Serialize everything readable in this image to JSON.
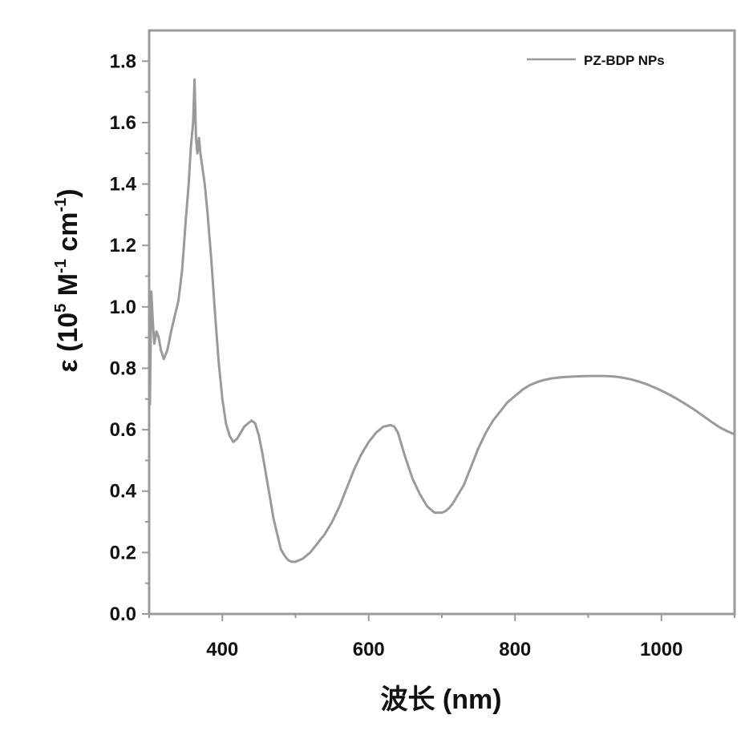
{
  "chart_data": {
    "type": "line",
    "title": "",
    "xlabel": "波长 (nm)",
    "ylabel_parts": {
      "symbol": "ε",
      "open": " (10",
      "exp1": "5",
      "mid": " M",
      "exp2": "-1",
      "unit": " cm",
      "exp3": "-1",
      "close": ")"
    },
    "xlim": [
      300,
      1100
    ],
    "ylim": [
      0.0,
      1.9
    ],
    "xticks": [
      400,
      600,
      800,
      1000
    ],
    "xtick_labels": [
      "400",
      "600",
      "800",
      "1000"
    ],
    "yticks": [
      0.0,
      0.2,
      0.4,
      0.6,
      0.8,
      1.0,
      1.2,
      1.4,
      1.6,
      1.8
    ],
    "ytick_labels": [
      "0.0",
      "0.2",
      "0.4",
      "0.6",
      "0.8",
      "1.0",
      "1.2",
      "1.4",
      "1.6",
      "1.8"
    ],
    "legend_position": "top-right",
    "series": [
      {
        "name": "PZ-BDP NPs",
        "color": "#9a9a9a",
        "x": [
          301,
          303,
          305,
          307,
          310,
          313,
          316,
          320,
          325,
          330,
          335,
          340,
          345,
          350,
          354,
          357,
          360,
          362,
          364,
          366,
          368,
          370,
          373,
          376,
          380,
          385,
          390,
          395,
          400,
          405,
          410,
          415,
          420,
          425,
          430,
          435,
          440,
          445,
          450,
          455,
          460,
          465,
          470,
          475,
          480,
          485,
          490,
          495,
          500,
          505,
          510,
          520,
          530,
          540,
          550,
          560,
          570,
          580,
          590,
          600,
          610,
          620,
          630,
          635,
          640,
          645,
          650,
          660,
          670,
          680,
          690,
          700,
          705,
          710,
          715,
          720,
          730,
          740,
          750,
          760,
          770,
          780,
          790,
          800,
          810,
          820,
          830,
          840,
          850,
          860,
          870,
          880,
          890,
          900,
          910,
          920,
          930,
          940,
          950,
          960,
          970,
          980,
          990,
          1000,
          1010,
          1020,
          1030,
          1040,
          1050,
          1060,
          1070,
          1080,
          1090,
          1100
        ],
        "y": [
          0.68,
          1.05,
          0.95,
          0.88,
          0.92,
          0.9,
          0.86,
          0.83,
          0.86,
          0.92,
          0.97,
          1.02,
          1.12,
          1.28,
          1.4,
          1.52,
          1.6,
          1.74,
          1.55,
          1.5,
          1.55,
          1.5,
          1.45,
          1.4,
          1.3,
          1.15,
          0.98,
          0.82,
          0.7,
          0.62,
          0.58,
          0.56,
          0.57,
          0.59,
          0.61,
          0.62,
          0.63,
          0.62,
          0.58,
          0.52,
          0.45,
          0.38,
          0.31,
          0.26,
          0.21,
          0.19,
          0.175,
          0.17,
          0.17,
          0.175,
          0.18,
          0.2,
          0.23,
          0.26,
          0.3,
          0.35,
          0.41,
          0.47,
          0.52,
          0.56,
          0.59,
          0.61,
          0.615,
          0.61,
          0.59,
          0.55,
          0.51,
          0.44,
          0.39,
          0.35,
          0.33,
          0.33,
          0.335,
          0.345,
          0.36,
          0.38,
          0.42,
          0.48,
          0.54,
          0.59,
          0.63,
          0.66,
          0.69,
          0.71,
          0.73,
          0.745,
          0.755,
          0.762,
          0.767,
          0.77,
          0.772,
          0.773,
          0.774,
          0.775,
          0.775,
          0.775,
          0.774,
          0.772,
          0.768,
          0.763,
          0.756,
          0.748,
          0.738,
          0.727,
          0.715,
          0.702,
          0.688,
          0.673,
          0.657,
          0.64,
          0.623,
          0.607,
          0.595,
          0.585
        ]
      }
    ]
  }
}
